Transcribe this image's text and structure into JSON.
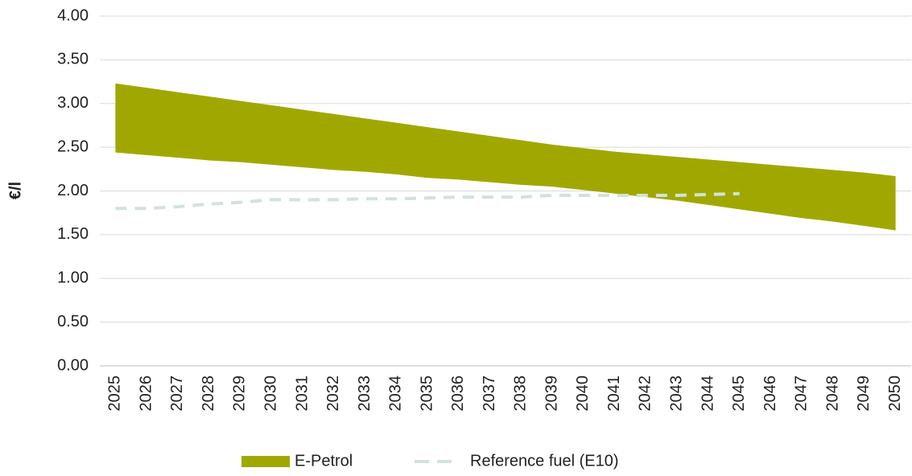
{
  "chart_data": {
    "type": "range_area",
    "y_label": "€/l",
    "categories": [
      "2025",
      "2026",
      "2027",
      "2028",
      "2029",
      "2030",
      "2031",
      "2032",
      "2033",
      "2034",
      "2035",
      "2036",
      "2037",
      "2038",
      "2039",
      "2040",
      "2041",
      "2042",
      "2043",
      "2044",
      "2045",
      "2046",
      "2047",
      "2048",
      "2049",
      "2050"
    ],
    "series": [
      {
        "name": "E-Petrol",
        "color": "#a0a800",
        "kind": "band",
        "high": [
          3.23,
          3.18,
          3.13,
          3.08,
          3.03,
          2.98,
          2.93,
          2.88,
          2.83,
          2.78,
          2.73,
          2.68,
          2.63,
          2.58,
          2.53,
          2.49,
          2.45,
          2.42,
          2.39,
          2.36,
          2.33,
          2.3,
          2.27,
          2.24,
          2.21,
          2.17
        ],
        "low": [
          2.44,
          2.41,
          2.38,
          2.35,
          2.33,
          2.3,
          2.27,
          2.24,
          2.22,
          2.19,
          2.15,
          2.13,
          2.1,
          2.07,
          2.05,
          2.01,
          1.97,
          1.93,
          1.89,
          1.84,
          1.79,
          1.74,
          1.69,
          1.65,
          1.6,
          1.55
        ]
      },
      {
        "name": "Reference fuel (E10)",
        "color": "#d3e2da",
        "kind": "dashed-line",
        "values": [
          1.8,
          1.8,
          1.82,
          1.85,
          1.87,
          1.9,
          1.9,
          1.9,
          1.91,
          1.91,
          1.92,
          1.93,
          1.93,
          1.93,
          1.95,
          1.95,
          1.95,
          1.95,
          1.95,
          1.96,
          1.97,
          null,
          null,
          null,
          null,
          null
        ]
      }
    ],
    "ylim": [
      0,
      4
    ],
    "yticks": [
      {
        "value": 0,
        "label": "0.00"
      },
      {
        "value": 0.5,
        "label": "0.50"
      },
      {
        "value": 1,
        "label": "1.00"
      },
      {
        "value": 1.5,
        "label": "1.50"
      },
      {
        "value": 2,
        "label": "2.00"
      },
      {
        "value": 2.5,
        "label": "2.50"
      },
      {
        "value": 3,
        "label": "3.00"
      },
      {
        "value": 3.5,
        "label": "3.50"
      },
      {
        "value": 4,
        "label": "4.00"
      }
    ],
    "grid": true,
    "legend": "bottom"
  }
}
